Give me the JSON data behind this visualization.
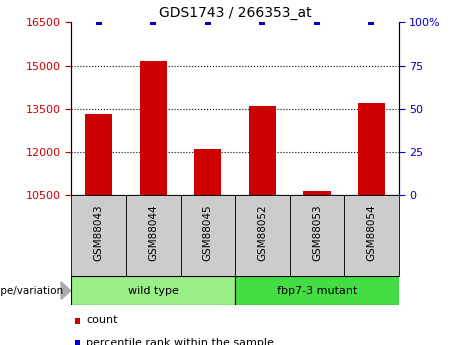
{
  "title": "GDS1743 / 266353_at",
  "samples": [
    "GSM88043",
    "GSM88044",
    "GSM88045",
    "GSM88052",
    "GSM88053",
    "GSM88054"
  ],
  "counts": [
    13300,
    15150,
    12100,
    13600,
    10650,
    13700
  ],
  "percentile_ranks": [
    100,
    100,
    100,
    100,
    100,
    100
  ],
  "ylim_left": [
    10500,
    16500
  ],
  "yticks_left": [
    10500,
    12000,
    13500,
    15000,
    16500
  ],
  "ylim_right": [
    0,
    100
  ],
  "yticks_right": [
    0,
    25,
    50,
    75,
    100
  ],
  "bar_color": "#cc0000",
  "dot_color": "#0000cc",
  "bar_width": 0.5,
  "groups": [
    {
      "label": "wild type",
      "indices": [
        0,
        1,
        2
      ],
      "color": "#99ee88"
    },
    {
      "label": "fbp7-3 mutant",
      "indices": [
        3,
        4,
        5
      ],
      "color": "#44dd44"
    }
  ],
  "group_label": "genotype/variation",
  "legend_count_label": "count",
  "legend_pct_label": "percentile rank within the sample",
  "tick_color_left": "#cc0000",
  "tick_color_right": "#0000cc",
  "xtick_bg": "#cccccc",
  "grid_lines": [
    12000,
    13500,
    15000
  ],
  "fig_bg": "#ffffff"
}
